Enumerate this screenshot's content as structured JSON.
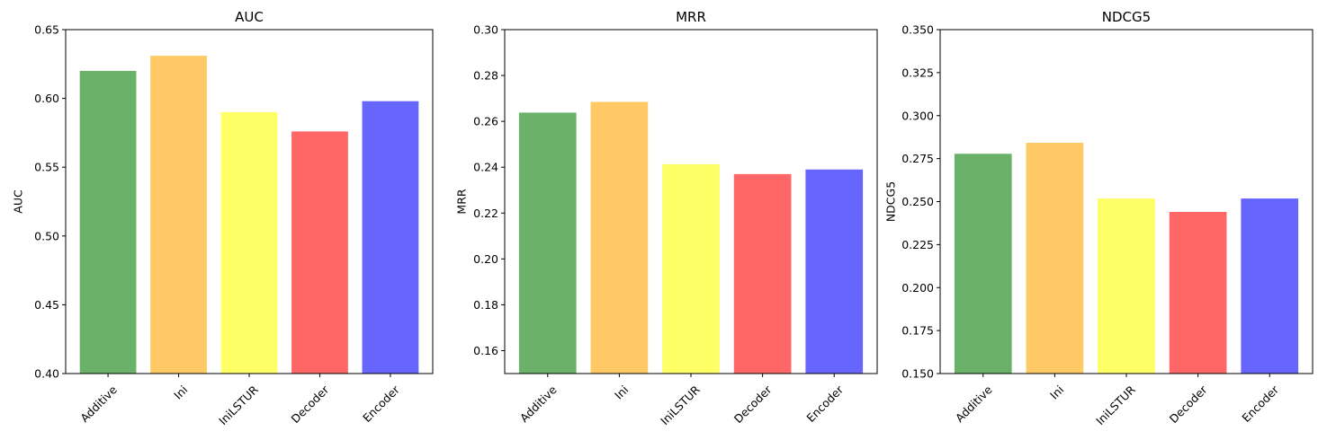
{
  "chart_data": [
    {
      "type": "bar",
      "title": "AUC",
      "ylabel": "AUC",
      "xlabel": "",
      "categories": [
        "Additive",
        "Ini",
        "IniLSTUR",
        "Decoder",
        "Encoder"
      ],
      "values": [
        0.62,
        0.631,
        0.59,
        0.576,
        0.598
      ],
      "ylim": [
        0.4,
        0.65
      ],
      "yticks": [
        "0.40",
        "0.45",
        "0.50",
        "0.55",
        "0.60",
        "0.65"
      ],
      "colors": [
        "#6ab26a",
        "#ffc966",
        "#ffff66",
        "#ff6666",
        "#6666ff"
      ],
      "grid": false,
      "legend": "none"
    },
    {
      "type": "bar",
      "title": "MRR",
      "ylabel": "MRR",
      "xlabel": "",
      "categories": [
        "Additive",
        "Ini",
        "IniLSTUR",
        "Decoder",
        "Encoder"
      ],
      "values": [
        0.2638,
        0.2685,
        0.2413,
        0.237,
        0.239
      ],
      "ylim": [
        0.15,
        0.3
      ],
      "yticks": [
        "0.16",
        "0.18",
        "0.20",
        "0.22",
        "0.24",
        "0.26",
        "0.28",
        "0.30"
      ],
      "colors": [
        "#6ab26a",
        "#ffc966",
        "#ffff66",
        "#ff6666",
        "#6666ff"
      ],
      "grid": false,
      "legend": "none"
    },
    {
      "type": "bar",
      "title": "NDCG5",
      "ylabel": "NDCG5",
      "xlabel": "",
      "categories": [
        "Additive",
        "Ini",
        "IniLSTUR",
        "Decoder",
        "Encoder"
      ],
      "values": [
        0.2778,
        0.2842,
        0.2518,
        0.244,
        0.2518
      ],
      "ylim": [
        0.15,
        0.35
      ],
      "yticks": [
        "0.150",
        "0.175",
        "0.200",
        "0.225",
        "0.250",
        "0.275",
        "0.300",
        "0.325",
        "0.350"
      ],
      "colors": [
        "#6ab26a",
        "#ffc966",
        "#ffff66",
        "#ff6666",
        "#6666ff"
      ],
      "grid": false,
      "legend": "none"
    }
  ]
}
